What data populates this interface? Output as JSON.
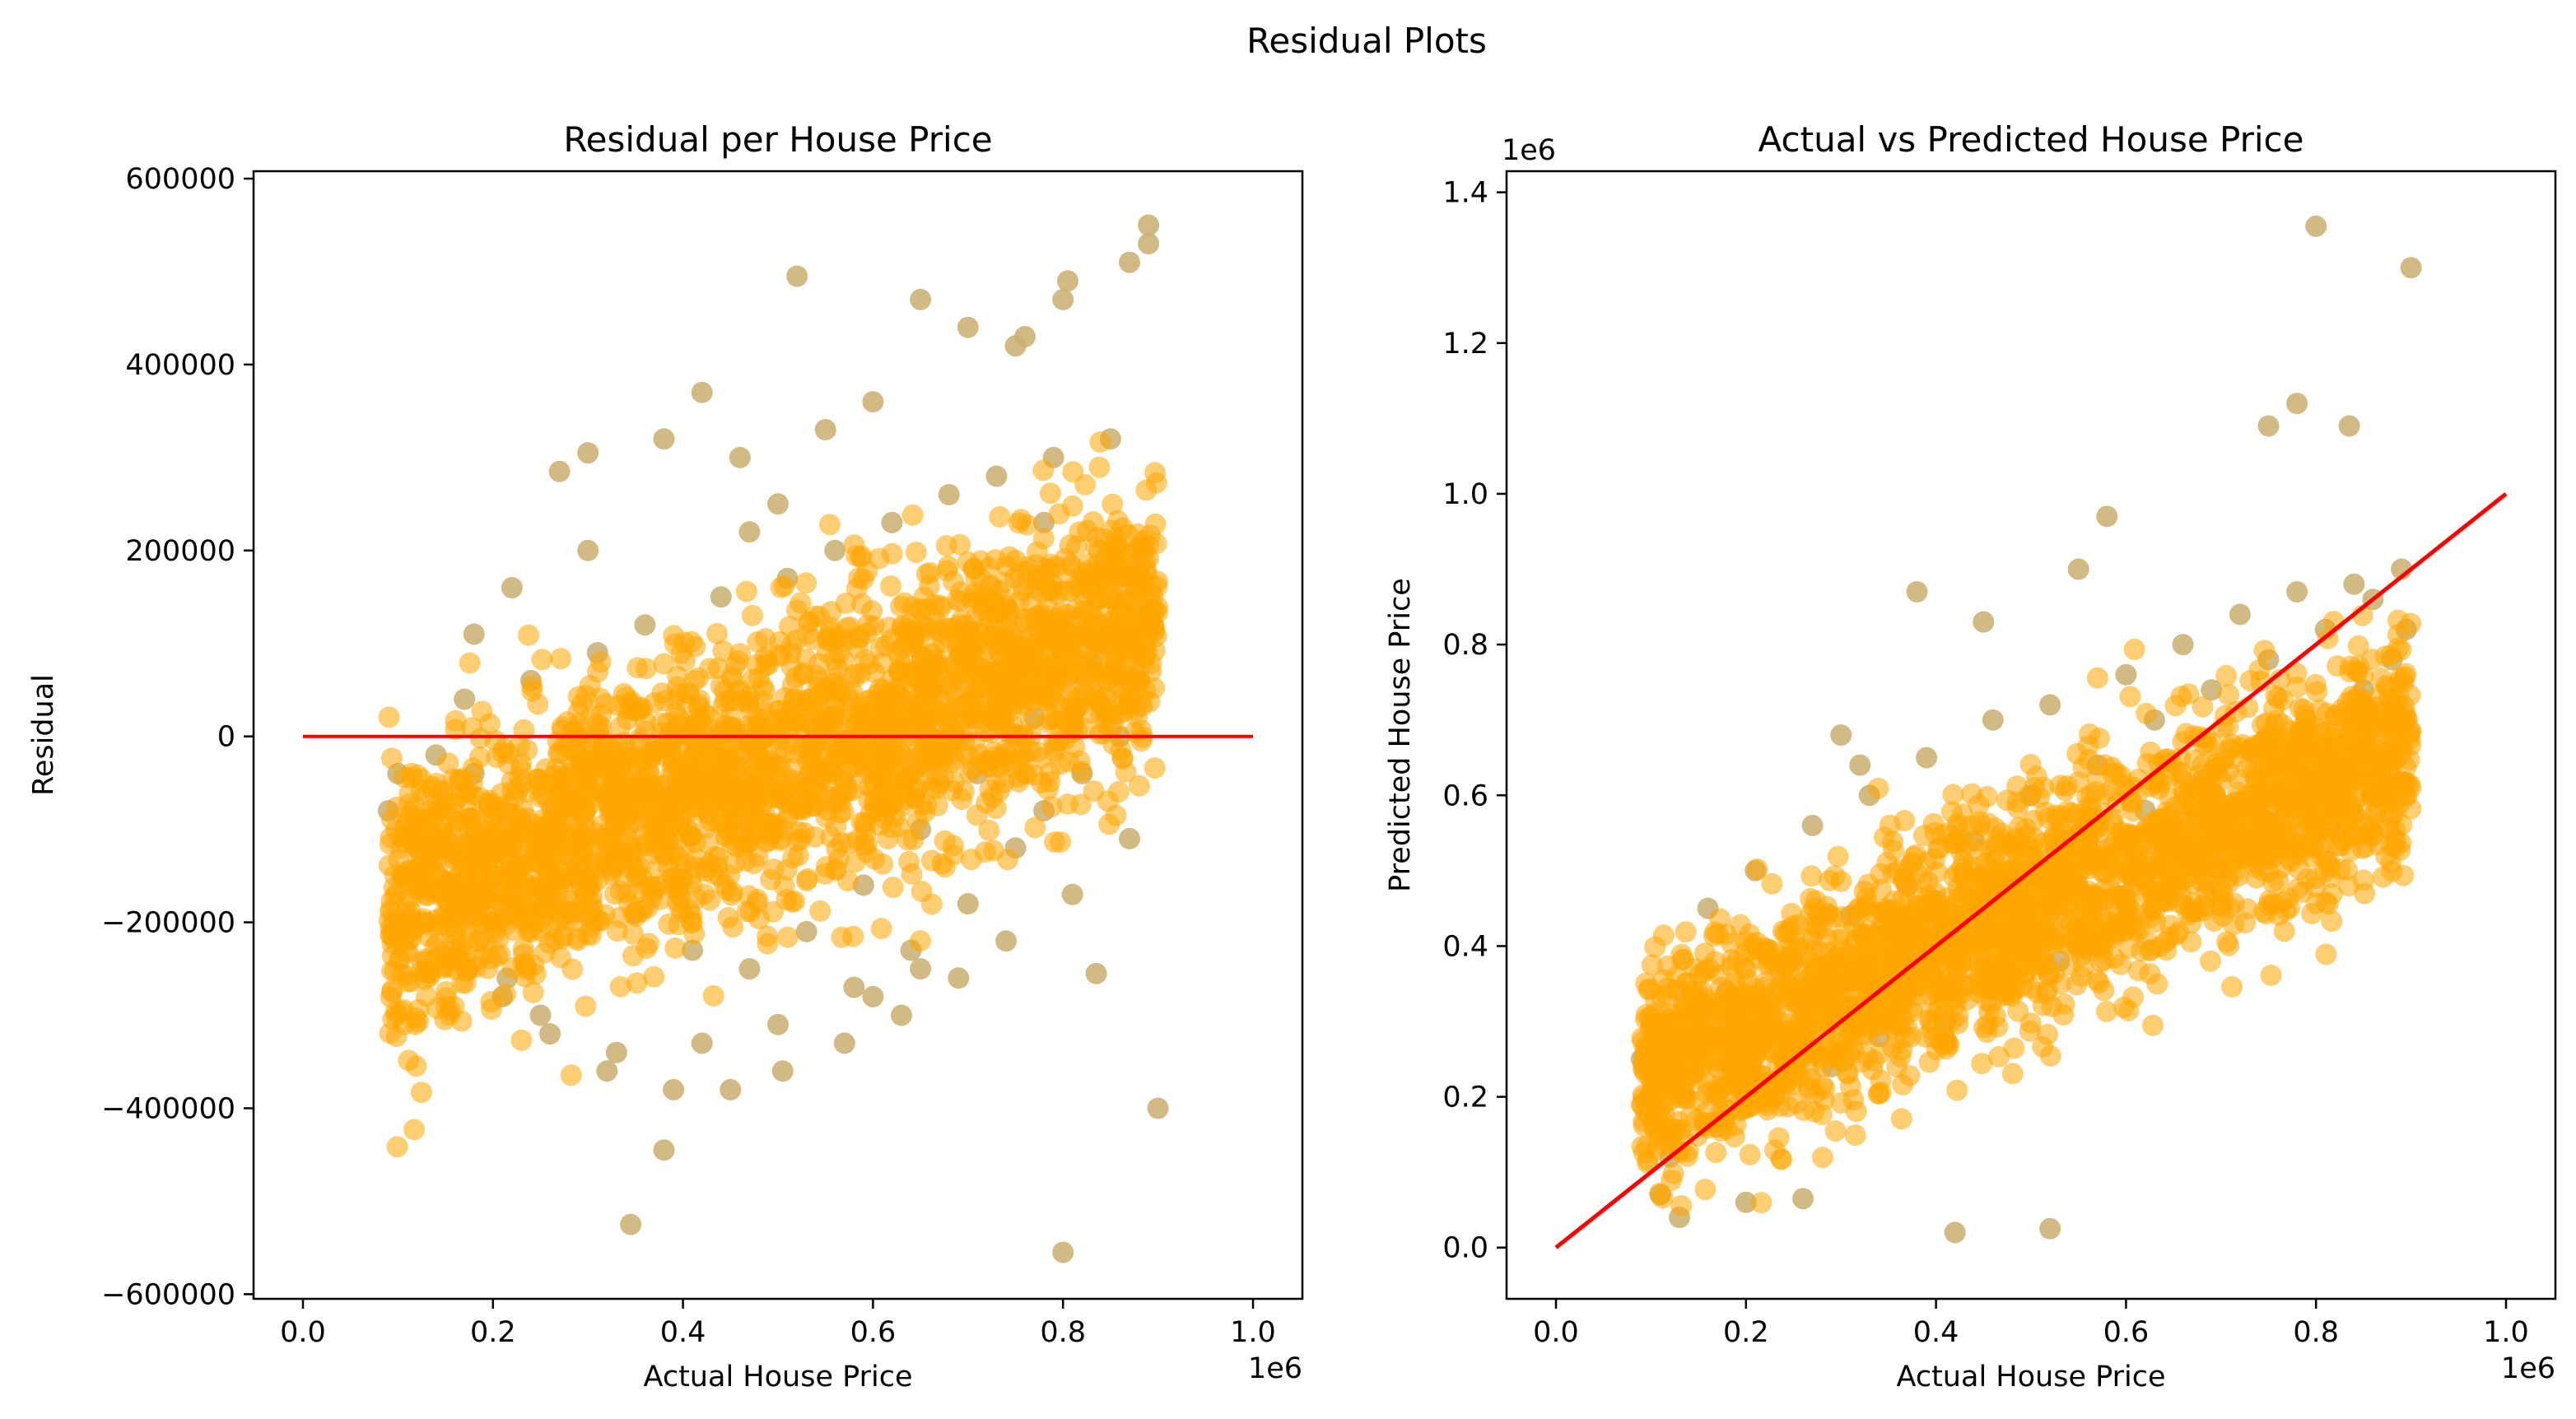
{
  "suptitle": "Residual Plots",
  "chart_data": [
    {
      "type": "scatter",
      "title": "Residual per House Price",
      "xlabel": "Actual House Price",
      "ylabel": "Residual",
      "x_offset_label": "1e6",
      "xlim": [
        -52000,
        1052000
      ],
      "ylim": [
        -605000,
        608000
      ],
      "xticks": [
        0,
        200000,
        400000,
        600000,
        800000,
        1000000
      ],
      "xtick_labels": [
        "0.0",
        "0.2",
        "0.4",
        "0.6",
        "0.8",
        "1.0"
      ],
      "yticks": [
        -600000,
        -400000,
        -200000,
        0,
        200000,
        400000,
        600000
      ],
      "ytick_labels": [
        "−600000",
        "−400000",
        "−200000",
        "0",
        "200000",
        "400000",
        "600000"
      ],
      "point_color": "#FFA500",
      "edge_point_color": "#C9AE6E",
      "line_color": "#FF0000",
      "series": [
        {
          "values_note": "",
          "x": [
            890000,
            870000,
            805000,
            800000,
            760000,
            520000,
            650000,
            700000,
            345000,
            380000,
            800000,
            900000,
            835000,
            890000,
            750000,
            600000,
            550000,
            460000,
            420000,
            300000,
            270000,
            380000,
            100000,
            90000,
            120000,
            160000,
            200000,
            215000,
            250000,
            330000,
            420000,
            500000,
            580000,
            640000,
            700000,
            750000,
            780000,
            820000,
            860000,
            880000,
            895000,
            170000,
            240000,
            310000,
            360000,
            440000,
            510000,
            560000,
            620000,
            680000,
            730000,
            790000,
            850000,
            140000,
            180000,
            230000,
            290000,
            350000,
            410000,
            470000,
            530000,
            590000,
            650000,
            710000,
            770000,
            830000,
            880000,
            105000,
            130000,
            155000,
            210000,
            260000,
            320000,
            390000,
            450000,
            505000,
            570000,
            630000,
            690000,
            740000,
            810000,
            870000,
            500000,
            470000,
            300000,
            220000,
            180000,
            600000,
            650000,
            780000
          ],
          "y": [
            550000,
            510000,
            490000,
            470000,
            430000,
            495000,
            470000,
            440000,
            -525000,
            -445000,
            -555000,
            -400000,
            -255000,
            530000,
            420000,
            360000,
            330000,
            300000,
            370000,
            305000,
            285000,
            320000,
            -40000,
            -80000,
            -120000,
            -160000,
            -200000,
            -260000,
            -300000,
            -340000,
            -330000,
            -310000,
            -270000,
            -230000,
            -180000,
            -120000,
            -80000,
            -40000,
            0,
            60000,
            120000,
            40000,
            60000,
            90000,
            120000,
            150000,
            170000,
            200000,
            230000,
            260000,
            280000,
            300000,
            320000,
            -20000,
            -40000,
            -90000,
            -140000,
            -190000,
            -230000,
            -250000,
            -210000,
            -160000,
            -100000,
            -40000,
            20000,
            80000,
            140000,
            -150000,
            -200000,
            -240000,
            -280000,
            -320000,
            -360000,
            -380000,
            -380000,
            -360000,
            -330000,
            -300000,
            -260000,
            -220000,
            -170000,
            -110000,
            250000,
            220000,
            200000,
            160000,
            110000,
            -280000,
            -250000,
            230000
          ]
        }
      ],
      "reference_line": {
        "x": [
          0,
          1000000
        ],
        "y": [
          0,
          0
        ]
      }
    },
    {
      "type": "scatter",
      "title": "Actual vs Predicted House Price",
      "xlabel": "Actual House Price",
      "ylabel": "Predicted House Price",
      "x_offset_label": "1e6",
      "y_offset_label": "1e6",
      "xlim": [
        -52000,
        1052000
      ],
      "ylim": [
        -68000,
        1428000
      ],
      "xticks": [
        0,
        200000,
        400000,
        600000,
        800000,
        1000000
      ],
      "xtick_labels": [
        "0.0",
        "0.2",
        "0.4",
        "0.6",
        "0.8",
        "1.0"
      ],
      "yticks": [
        0,
        200000,
        400000,
        600000,
        800000,
        1000000,
        1200000,
        1400000
      ],
      "ytick_labels": [
        "0.0",
        "0.2",
        "0.4",
        "0.6",
        "0.8",
        "1.0",
        "1.2",
        "1.4"
      ],
      "point_color": "#FFA500",
      "edge_point_color": "#C9AE6E",
      "line_color": "#FF0000",
      "series": [
        {
          "x": [
            800000,
            900000,
            780000,
            750000,
            835000,
            580000,
            550000,
            450000,
            300000,
            320000,
            380000,
            520000,
            420000,
            260000,
            200000,
            130000,
            110000,
            90000,
            150000,
            180000,
            250000,
            350000,
            400000,
            480000,
            560000,
            620000,
            680000,
            730000,
            790000,
            850000,
            880000,
            895000,
            120000,
            170000,
            230000,
            290000,
            340000,
            410000,
            470000,
            530000,
            590000,
            640000,
            700000,
            760000,
            820000,
            870000,
            100000,
            140000,
            190000,
            240000,
            310000,
            370000,
            440000,
            500000,
            570000,
            630000,
            690000,
            750000,
            810000,
            860000,
            160000,
            210000,
            270000,
            330000,
            390000,
            460000,
            520000,
            600000,
            660000,
            720000,
            780000,
            840000,
            890000
          ],
          "y": [
            1355000,
            1300000,
            1120000,
            1090000,
            1090000,
            970000,
            900000,
            830000,
            680000,
            640000,
            870000,
            25000,
            20000,
            65000,
            60000,
            40000,
            70000,
            250000,
            300000,
            340000,
            380000,
            420000,
            460000,
            500000,
            540000,
            580000,
            620000,
            660000,
            700000,
            740000,
            780000,
            820000,
            120000,
            160000,
            200000,
            240000,
            280000,
            300000,
            340000,
            380000,
            420000,
            460000,
            500000,
            540000,
            580000,
            620000,
            200000,
            260000,
            320000,
            380000,
            440000,
            480000,
            540000,
            600000,
            640000,
            700000,
            740000,
            780000,
            820000,
            860000,
            450000,
            500000,
            560000,
            600000,
            650000,
            700000,
            720000,
            760000,
            800000,
            840000,
            870000,
            880000,
            900000
          ]
        }
      ],
      "reference_line": {
        "x": [
          0,
          1000000
        ],
        "y": [
          0,
          1000000
        ]
      }
    }
  ]
}
